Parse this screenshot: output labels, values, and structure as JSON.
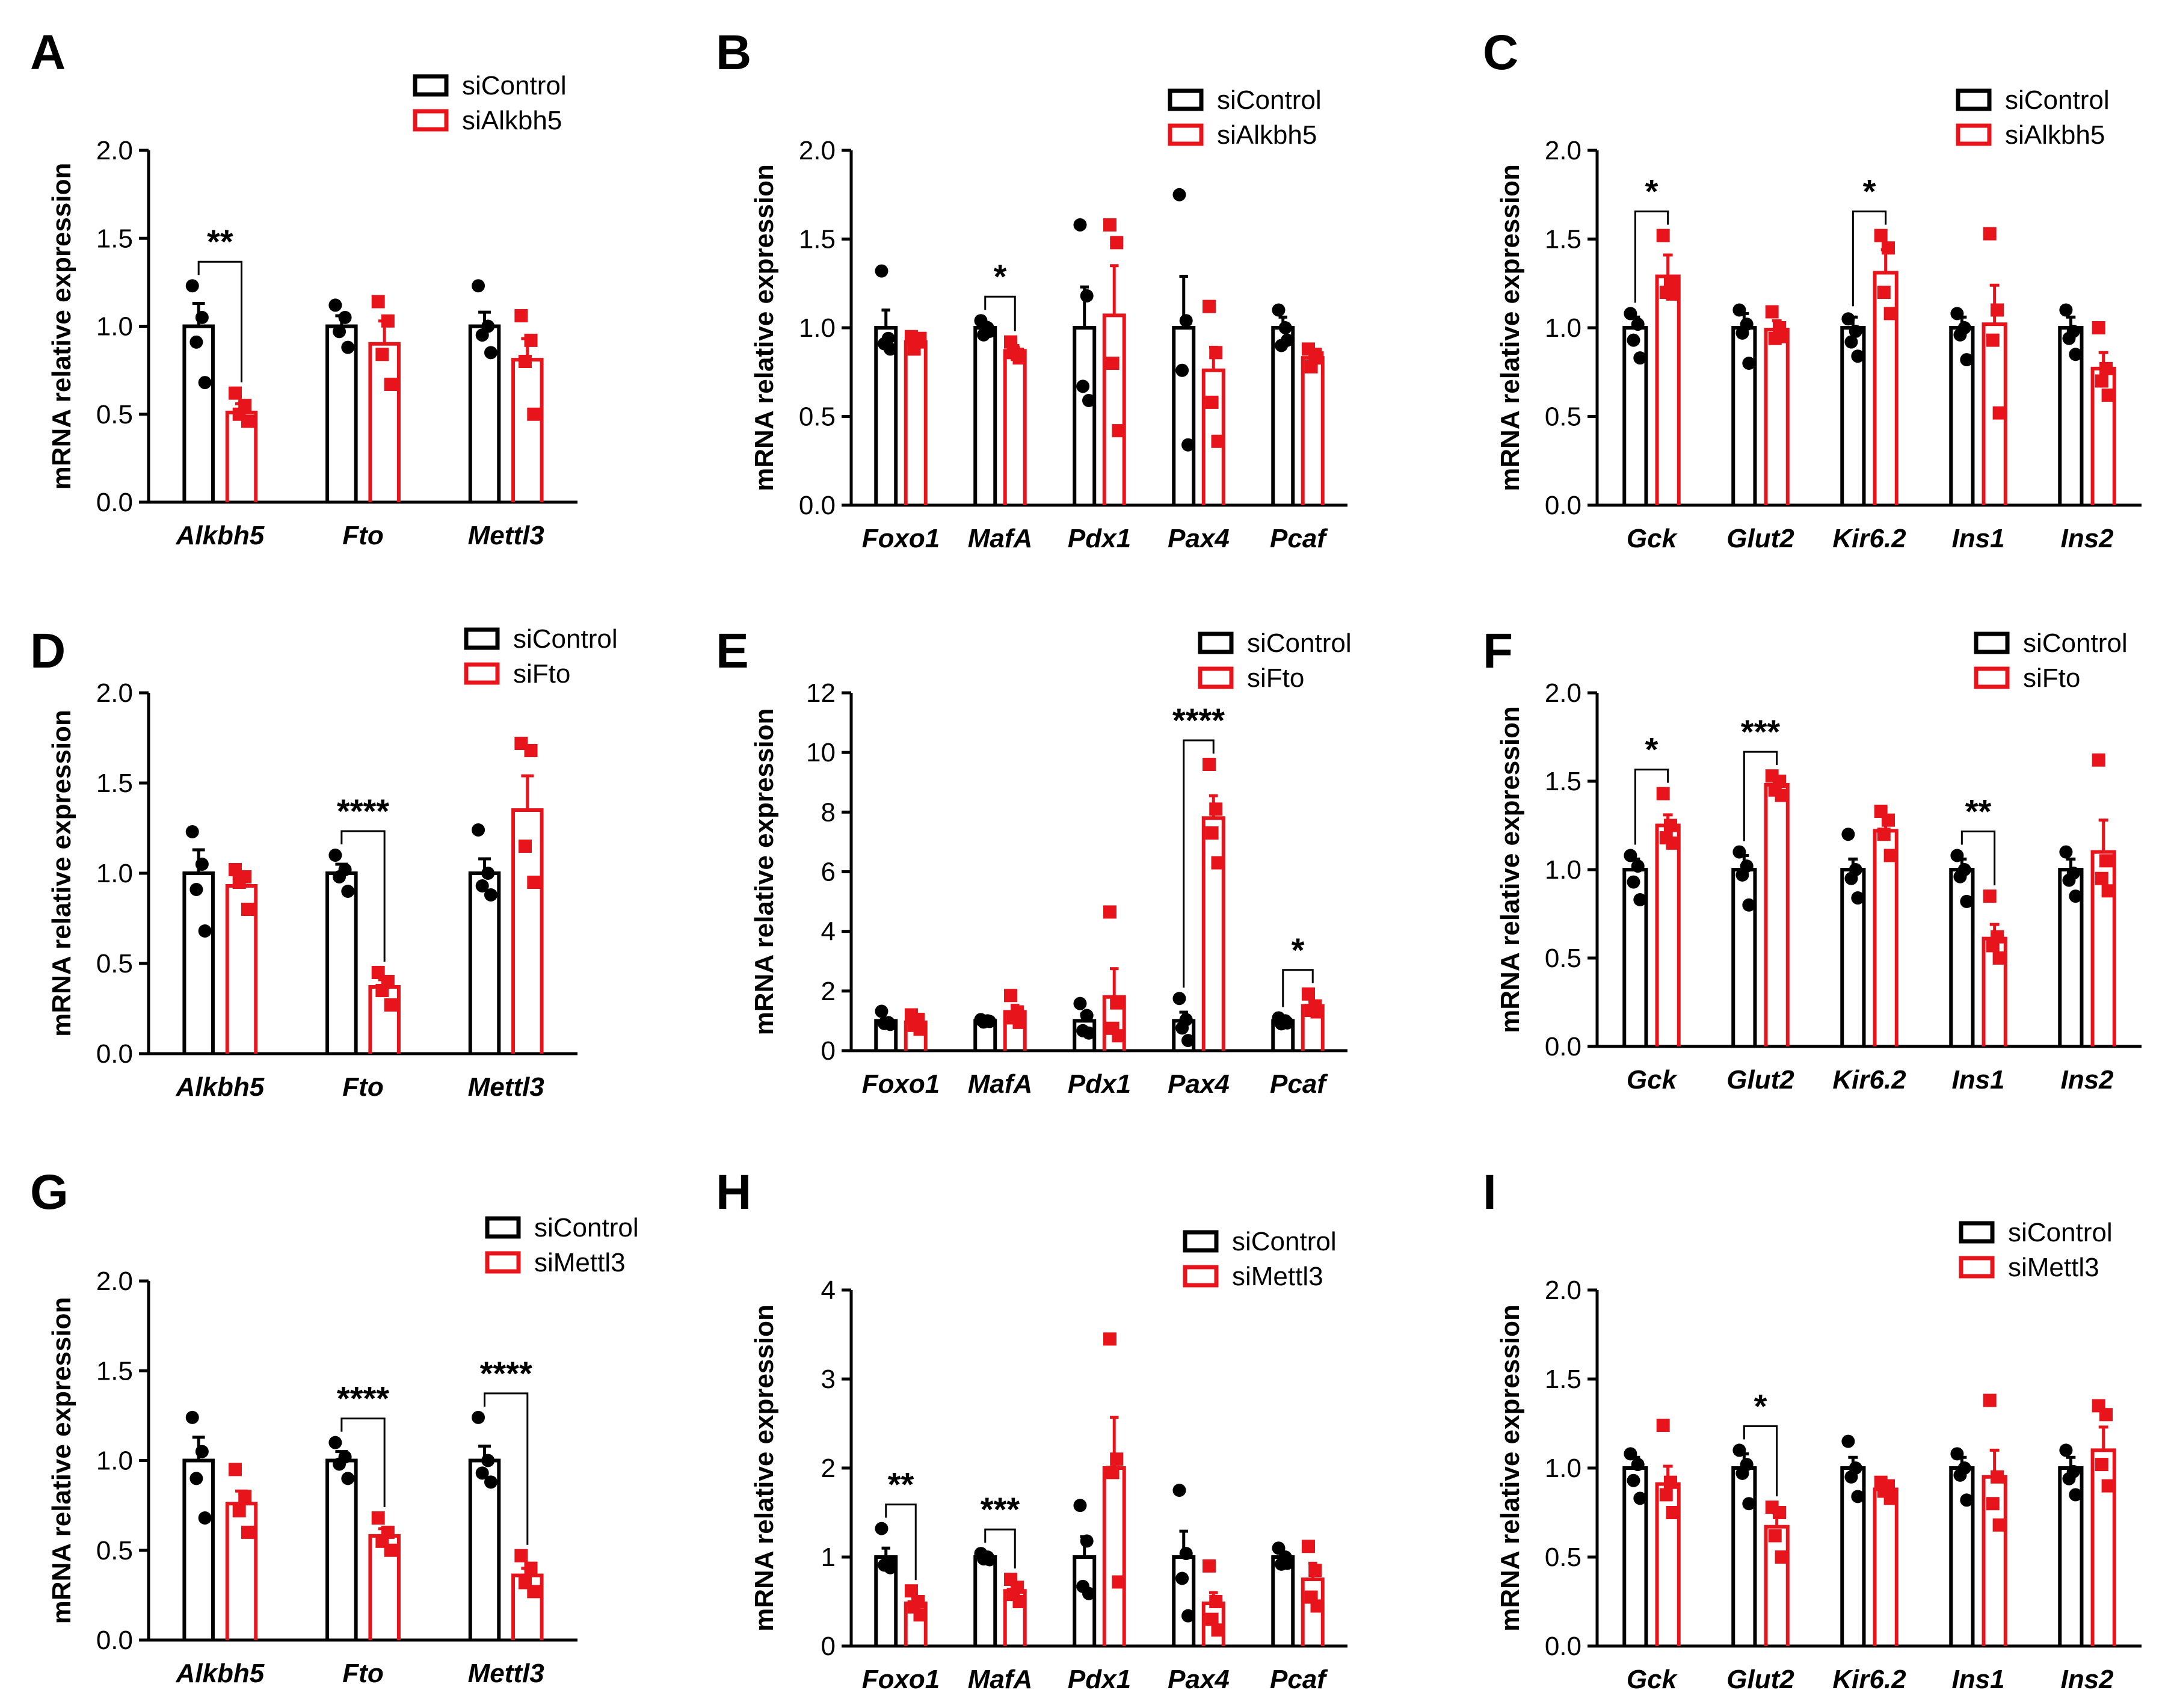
{
  "figure": {
    "colors": {
      "control": "#000000",
      "treatment": "#e8141c"
    },
    "panels": [
      "A",
      "B",
      "C",
      "D",
      "E",
      "F",
      "G",
      "H",
      "I"
    ]
  },
  "chart_data": [
    {
      "panel": "A",
      "type": "bar",
      "ylabel": "mRNA relative expression",
      "ylim": [
        0,
        2.0
      ],
      "yticks": [
        "0.0",
        "0.5",
        "1.0",
        "1.5",
        "2.0"
      ],
      "categories": [
        "Alkbh5",
        "Fto",
        "Mettl3"
      ],
      "legend": [
        "siControl",
        "siAlkbh5"
      ],
      "series": [
        {
          "name": "siControl",
          "values": [
            1.0,
            1.0,
            1.0
          ],
          "sem": [
            0.13,
            0.06,
            0.08
          ],
          "points": [
            [
              1.23,
              1.05,
              0.91,
              0.68
            ],
            [
              1.12,
              1.05,
              0.97,
              0.88
            ],
            [
              1.23,
              1.0,
              0.95,
              0.85
            ]
          ]
        },
        {
          "name": "siAlkbh5",
          "values": [
            0.51,
            0.9,
            0.81
          ],
          "sem": [
            0.05,
            0.13,
            0.12
          ],
          "points": [
            [
              0.62,
              0.55,
              0.5,
              0.46
            ],
            [
              1.14,
              1.03,
              0.84,
              0.67
            ],
            [
              1.06,
              0.92,
              0.8,
              0.5
            ]
          ]
        }
      ],
      "significance": [
        {
          "category": "Alkbh5",
          "label": "**"
        }
      ]
    },
    {
      "panel": "B",
      "type": "bar",
      "ylabel": "mRNA relative expression",
      "ylim": [
        0,
        2.0
      ],
      "yticks": [
        "0.0",
        "0.5",
        "1.0",
        "1.5",
        "2.0"
      ],
      "categories": [
        "Foxo1",
        "MafA",
        "Pdx1",
        "Pax4",
        "Pcaf"
      ],
      "legend": [
        "siControl",
        "siAlkbh5"
      ],
      "series": [
        {
          "name": "siControl",
          "values": [
            1.0,
            1.0,
            1.0,
            1.0,
            1.0
          ],
          "sem": [
            0.1,
            0.03,
            0.23,
            0.29,
            0.06
          ],
          "points": [
            [
              1.32,
              0.94,
              0.91,
              0.88
            ],
            [
              1.04,
              1.0,
              0.96,
              0.98
            ],
            [
              1.58,
              1.18,
              0.67,
              0.59
            ],
            [
              1.75,
              1.04,
              0.76,
              0.34
            ],
            [
              1.1,
              1.0,
              0.9,
              0.93
            ]
          ]
        },
        {
          "name": "siAlkbh5",
          "values": [
            0.92,
            0.87,
            1.07,
            0.76,
            0.83
          ],
          "sem": [
            0.03,
            0.03,
            0.28,
            0.13,
            0.04
          ],
          "points": [
            [
              0.95,
              0.92,
              0.88,
              0.94
            ],
            [
              0.92,
              0.85,
              0.86,
              0.83
            ],
            [
              1.58,
              1.48,
              0.8,
              0.42
            ],
            [
              1.12,
              0.86,
              0.58,
              0.36
            ],
            [
              0.88,
              0.85,
              0.78,
              0.83
            ]
          ]
        }
      ],
      "significance": [
        {
          "category": "MafA",
          "label": "*"
        }
      ]
    },
    {
      "panel": "C",
      "type": "bar",
      "ylabel": "mRNA relative expression",
      "ylim": [
        0,
        2.0
      ],
      "yticks": [
        "0.0",
        "0.5",
        "1.0",
        "1.5",
        "2.0"
      ],
      "categories": [
        "Gck",
        "Glut2",
        "Kir6.2",
        "Ins1",
        "Ins2"
      ],
      "legend": [
        "siControl",
        "siAlkbh5"
      ],
      "series": [
        {
          "name": "siControl",
          "values": [
            1.0,
            1.0,
            1.0,
            1.0,
            1.0
          ],
          "sem": [
            0.06,
            0.08,
            0.06,
            0.06,
            0.06
          ],
          "points": [
            [
              1.08,
              1.02,
              0.93,
              0.83
            ],
            [
              1.1,
              1.02,
              0.97,
              0.8
            ],
            [
              1.05,
              0.98,
              0.92,
              0.84
            ],
            [
              1.08,
              1.0,
              0.96,
              0.82
            ],
            [
              1.1,
              0.98,
              0.94,
              0.85
            ]
          ]
        },
        {
          "name": "siAlkbh5",
          "values": [
            1.29,
            0.99,
            1.31,
            1.02,
            0.77
          ],
          "sem": [
            0.12,
            0.05,
            0.13,
            0.22,
            0.09
          ],
          "points": [
            [
              1.52,
              1.26,
              1.2,
              1.19
            ],
            [
              1.09,
              1.0,
              0.94,
              0.95
            ],
            [
              1.52,
              1.45,
              1.2,
              1.08
            ],
            [
              1.53,
              1.1,
              0.93,
              0.52
            ],
            [
              1.0,
              0.77,
              0.7,
              0.62
            ]
          ]
        }
      ],
      "significance": [
        {
          "category": "Gck",
          "label": "*"
        },
        {
          "category": "Kir6.2",
          "label": "*"
        }
      ]
    },
    {
      "panel": "D",
      "type": "bar",
      "ylabel": "mRNA relative expression",
      "ylim": [
        0,
        2.0
      ],
      "yticks": [
        "0.0",
        "0.5",
        "1.0",
        "1.5",
        "2.0"
      ],
      "categories": [
        "Alkbh5",
        "Fto",
        "Mettl3"
      ],
      "legend": [
        "siControl",
        "siFto"
      ],
      "series": [
        {
          "name": "siControl",
          "values": [
            1.0,
            1.0,
            1.0
          ],
          "sem": [
            0.13,
            0.05,
            0.08
          ],
          "points": [
            [
              1.23,
              1.05,
              0.91,
              0.68
            ],
            [
              1.1,
              1.02,
              0.98,
              0.9
            ],
            [
              1.24,
              1.0,
              0.93,
              0.88
            ]
          ]
        },
        {
          "name": "siFto",
          "values": [
            0.93,
            0.37,
            1.35
          ],
          "sem": [
            0.06,
            0.04,
            0.19
          ],
          "points": [
            [
              1.02,
              0.98,
              0.95,
              0.8
            ],
            [
              0.45,
              0.4,
              0.35,
              0.27
            ],
            [
              1.72,
              1.68,
              1.15,
              0.95
            ]
          ]
        }
      ],
      "significance": [
        {
          "category": "Fto",
          "label": "****"
        }
      ]
    },
    {
      "panel": "E",
      "type": "bar",
      "ylabel": "mRNA relative expression",
      "ylim": [
        0,
        12
      ],
      "yticks": [
        "0",
        "2",
        "4",
        "6",
        "8",
        "10",
        "12"
      ],
      "categories": [
        "Foxo1",
        "MafA",
        "Pdx1",
        "Pax4",
        "Pcaf"
      ],
      "legend": [
        "siControl",
        "siFto"
      ],
      "series": [
        {
          "name": "siControl",
          "values": [
            1.0,
            1.0,
            1.0,
            1.0,
            1.0
          ],
          "sem": [
            0.1,
            0.03,
            0.23,
            0.29,
            0.06
          ],
          "points": [
            [
              1.32,
              0.94,
              0.91,
              0.88
            ],
            [
              1.04,
              1.0,
              0.96,
              0.98
            ],
            [
              1.58,
              1.18,
              0.67,
              0.59
            ],
            [
              1.75,
              1.04,
              0.76,
              0.34
            ],
            [
              1.1,
              1.0,
              0.9,
              0.93
            ]
          ]
        },
        {
          "name": "siFto",
          "values": [
            0.95,
            1.3,
            1.8,
            7.8,
            1.5
          ],
          "sem": [
            0.1,
            0.22,
            0.95,
            0.75,
            0.17
          ],
          "points": [
            [
              1.2,
              1.05,
              0.85,
              0.72
            ],
            [
              1.85,
              1.3,
              1.1,
              0.95
            ],
            [
              4.65,
              1.6,
              0.75,
              0.5
            ],
            [
              9.6,
              8.1,
              7.3,
              6.3
            ],
            [
              1.9,
              1.5,
              1.35,
              1.3
            ]
          ]
        }
      ],
      "significance": [
        {
          "category": "Pax4",
          "label": "****"
        },
        {
          "category": "Pcaf",
          "label": "*"
        }
      ]
    },
    {
      "panel": "F",
      "type": "bar",
      "ylabel": "mRNA relative expression",
      "ylim": [
        0,
        2.0
      ],
      "yticks": [
        "0.0",
        "0.5",
        "1.0",
        "1.5",
        "2.0"
      ],
      "categories": [
        "Gck",
        "Glut2",
        "Kir6.2",
        "Ins1",
        "Ins2"
      ],
      "legend": [
        "siControl",
        "siFto"
      ],
      "series": [
        {
          "name": "siControl",
          "values": [
            1.0,
            1.0,
            1.0,
            1.0,
            1.0
          ],
          "sem": [
            0.06,
            0.08,
            0.06,
            0.06,
            0.06
          ],
          "points": [
            [
              1.08,
              1.02,
              0.93,
              0.83
            ],
            [
              1.1,
              1.02,
              0.97,
              0.8
            ],
            [
              1.2,
              1.0,
              0.95,
              0.84
            ],
            [
              1.08,
              1.0,
              0.96,
              0.82
            ],
            [
              1.1,
              0.98,
              0.94,
              0.85
            ]
          ]
        },
        {
          "name": "siFto",
          "values": [
            1.25,
            1.48,
            1.22,
            0.61,
            1.1
          ],
          "sem": [
            0.06,
            0.04,
            0.08,
            0.08,
            0.18
          ],
          "points": [
            [
              1.43,
              1.25,
              1.18,
              1.15
            ],
            [
              1.53,
              1.5,
              1.45,
              1.42
            ],
            [
              1.33,
              1.28,
              1.2,
              1.08
            ],
            [
              0.85,
              0.62,
              0.57,
              0.5
            ],
            [
              1.62,
              1.05,
              0.95,
              0.88
            ]
          ]
        }
      ],
      "significance": [
        {
          "category": "Gck",
          "label": "*"
        },
        {
          "category": "Glut2",
          "label": "***"
        },
        {
          "category": "Ins1",
          "label": "**"
        }
      ]
    },
    {
      "panel": "G",
      "type": "bar",
      "ylabel": "mRNA relative expression",
      "ylim": [
        0,
        2.0
      ],
      "yticks": [
        "0.0",
        "0.5",
        "1.0",
        "1.5",
        "2.0"
      ],
      "categories": [
        "Alkbh5",
        "Fto",
        "Mettl3"
      ],
      "legend": [
        "siControl",
        "siMettl3"
      ],
      "series": [
        {
          "name": "siControl",
          "values": [
            1.0,
            1.0,
            1.0
          ],
          "sem": [
            0.13,
            0.05,
            0.08
          ],
          "points": [
            [
              1.24,
              1.05,
              0.9,
              0.68
            ],
            [
              1.1,
              1.02,
              0.98,
              0.9
            ],
            [
              1.24,
              1.0,
              0.93,
              0.88
            ]
          ]
        },
        {
          "name": "siMettl3",
          "values": [
            0.76,
            0.58,
            0.36
          ],
          "sem": [
            0.07,
            0.04,
            0.04
          ],
          "points": [
            [
              0.95,
              0.8,
              0.72,
              0.6
            ],
            [
              0.68,
              0.6,
              0.55,
              0.5
            ],
            [
              0.47,
              0.4,
              0.32,
              0.27
            ]
          ]
        }
      ],
      "significance": [
        {
          "category": "Fto",
          "label": "****"
        },
        {
          "category": "Mettl3",
          "label": "****"
        }
      ]
    },
    {
      "panel": "H",
      "type": "bar",
      "ylabel": "mRNA relative expression",
      "ylim": [
        0,
        4
      ],
      "yticks": [
        "0",
        "1",
        "2",
        "3",
        "4"
      ],
      "categories": [
        "Foxo1",
        "MafA",
        "Pdx1",
        "Pax4",
        "Pcaf"
      ],
      "legend": [
        "siControl",
        "siMettl3"
      ],
      "series": [
        {
          "name": "siControl",
          "values": [
            1.0,
            1.0,
            1.0,
            1.0,
            1.0
          ],
          "sem": [
            0.1,
            0.02,
            0.23,
            0.29,
            0.05
          ],
          "points": [
            [
              1.32,
              0.94,
              0.91,
              0.88
            ],
            [
              1.04,
              1.0,
              0.98,
              0.97
            ],
            [
              1.58,
              1.18,
              0.67,
              0.59
            ],
            [
              1.75,
              1.04,
              0.76,
              0.34
            ],
            [
              1.1,
              1.0,
              0.92,
              0.93
            ]
          ]
        },
        {
          "name": "siMettl3",
          "values": [
            0.48,
            0.62,
            2.0,
            0.48,
            0.75
          ],
          "sem": [
            0.06,
            0.06,
            0.57,
            0.12,
            0.18
          ],
          "points": [
            [
              0.62,
              0.5,
              0.44,
              0.35
            ],
            [
              0.75,
              0.66,
              0.58,
              0.5
            ],
            [
              3.45,
              2.1,
              1.95,
              0.72
            ],
            [
              0.9,
              0.5,
              0.3,
              0.18
            ],
            [
              1.12,
              0.85,
              0.55,
              0.45
            ]
          ]
        }
      ],
      "significance": [
        {
          "category": "Foxo1",
          "label": "**"
        },
        {
          "category": "MafA",
          "label": "***"
        }
      ]
    },
    {
      "panel": "I",
      "type": "bar",
      "ylabel": "mRNA relative expression",
      "ylim": [
        0,
        2.0
      ],
      "yticks": [
        "0.0",
        "0.5",
        "1.0",
        "1.5",
        "2.0"
      ],
      "categories": [
        "Gck",
        "Glut2",
        "Kir6.2",
        "Ins1",
        "Ins2"
      ],
      "legend": [
        "siControl",
        "siMettl3"
      ],
      "series": [
        {
          "name": "siControl",
          "values": [
            1.0,
            1.0,
            1.0,
            1.0,
            1.0
          ],
          "sem": [
            0.06,
            0.08,
            0.06,
            0.06,
            0.06
          ],
          "points": [
            [
              1.08,
              1.02,
              0.93,
              0.83
            ],
            [
              1.1,
              1.02,
              0.97,
              0.8
            ],
            [
              1.15,
              1.0,
              0.95,
              0.84
            ],
            [
              1.08,
              1.0,
              0.96,
              0.82
            ],
            [
              1.1,
              0.98,
              0.94,
              0.85
            ]
          ]
        },
        {
          "name": "siMettl3",
          "values": [
            0.91,
            0.67,
            0.88,
            0.95,
            1.1
          ],
          "sem": [
            0.1,
            0.08,
            0.03,
            0.15,
            0.13
          ],
          "points": [
            [
              1.24,
              0.92,
              0.85,
              0.75
            ],
            [
              0.78,
              0.75,
              0.62,
              0.5
            ],
            [
              0.92,
              0.9,
              0.87,
              0.83
            ],
            [
              1.38,
              0.95,
              0.8,
              0.68
            ],
            [
              1.35,
              1.3,
              1.02,
              0.9
            ]
          ]
        }
      ],
      "significance": [
        {
          "category": "Glut2",
          "label": "*"
        }
      ]
    }
  ]
}
